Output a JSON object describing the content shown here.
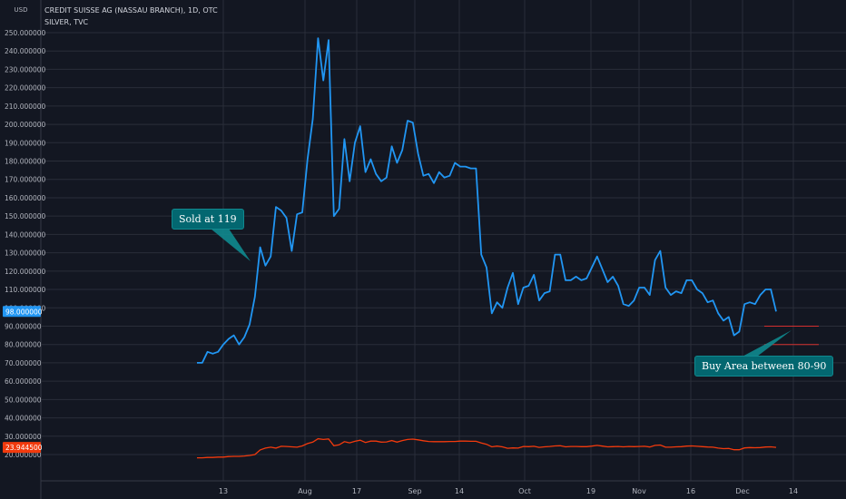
{
  "header": {
    "currency": "USD",
    "title": "CREDIT SUISSE AG (NASSAU BRANCH), 1D, OTC",
    "compare_symbol": "SILVER, TVC"
  },
  "annotations": {
    "sold": "Sold at 119",
    "buy": "Buy Area between 80-90"
  },
  "colors": {
    "background": "#131722",
    "grid": "#2a2e39",
    "main_line": "#2196f3",
    "compare_line": "#f23a0d",
    "level_lines": "#d32f2f",
    "callout": "#036770"
  },
  "chart_data": {
    "type": "line",
    "xlabels": [
      "13",
      "Aug",
      "17",
      "Sep",
      "14",
      "Oct",
      "19",
      "Nov",
      "16",
      "Dec",
      "14"
    ],
    "yticks": [
      "20.000000",
      "30.000000",
      "40.000000",
      "50.000000",
      "60.000000",
      "70.000000",
      "80.000000",
      "90.000000",
      "100.000000",
      "110.000000",
      "120.000000",
      "130.000000",
      "140.000000",
      "150.000000",
      "160.000000",
      "170.000000",
      "180.000000",
      "190.000000",
      "200.000000",
      "210.000000",
      "220.000000",
      "230.000000",
      "240.000000",
      "250.000000"
    ],
    "ylim": [
      15,
      252
    ],
    "last_price_label": "98.000000",
    "compare_price_label": "23.944500",
    "series": [
      {
        "values": [
          70,
          70,
          76,
          75,
          76,
          80,
          83,
          85,
          80,
          84,
          91,
          106,
          133,
          123,
          128,
          155,
          153,
          149,
          131,
          151,
          152,
          181,
          203,
          247,
          224,
          246,
          150,
          154,
          192,
          169,
          190,
          199,
          174,
          181,
          173,
          169,
          171,
          188,
          179,
          186,
          202,
          201,
          184,
          172,
          173,
          168,
          174,
          171,
          172,
          179,
          177,
          177,
          176,
          176,
          129,
          122,
          97,
          103,
          100,
          111,
          119,
          102,
          111,
          112,
          118,
          104,
          108,
          109,
          129,
          129,
          115,
          115,
          117,
          115,
          116,
          122,
          128,
          121,
          114,
          117,
          112,
          102,
          101,
          104,
          111,
          111,
          107,
          126,
          131,
          111,
          107,
          109,
          108,
          115,
          115,
          110,
          108,
          103,
          104,
          97,
          93,
          95,
          85,
          87,
          102,
          103,
          102,
          107,
          110,
          110,
          98
        ],
        "compare_values": [
          18.2,
          18.2,
          18.4,
          18.4,
          18.6,
          18.6,
          18.9,
          19.0,
          19.0,
          19.2,
          19.5,
          20.0,
          22.5,
          23.5,
          24.0,
          23.5,
          24.5,
          24.4,
          24.2,
          24.0,
          24.7,
          26.0,
          26.8,
          28.6,
          28.2,
          28.5,
          24.8,
          25.3,
          27.0,
          26.4,
          27.2,
          27.8,
          26.6,
          27.3,
          27.3,
          26.8,
          26.9,
          27.6,
          26.8,
          27.6,
          28.2,
          28.4,
          28.0,
          27.5,
          27.1,
          27.0,
          27.0,
          27.0,
          27.1,
          27.1,
          27.3,
          27.3,
          27.2,
          27.2,
          26.3,
          25.6,
          24.2,
          24.6,
          24.2,
          23.4,
          23.6,
          23.5,
          24.4,
          24.3,
          24.5,
          23.9,
          24.2,
          24.4,
          24.7,
          24.8,
          24.2,
          24.4,
          24.4,
          24.3,
          24.3,
          24.6,
          25.0,
          24.6,
          24.2,
          24.3,
          24.4,
          24.2,
          24.4,
          24.3,
          24.4,
          24.5,
          24.1,
          25.0,
          25.2,
          24.0,
          24.0,
          24.2,
          24.3,
          24.6,
          24.7,
          24.5,
          24.3,
          24.1,
          24.0,
          23.5,
          23.2,
          23.3,
          22.6,
          22.6,
          23.6,
          23.8,
          23.7,
          23.8,
          24.1,
          24.2,
          23.9
        ],
        "levels": [
          90,
          80
        ]
      }
    ]
  }
}
